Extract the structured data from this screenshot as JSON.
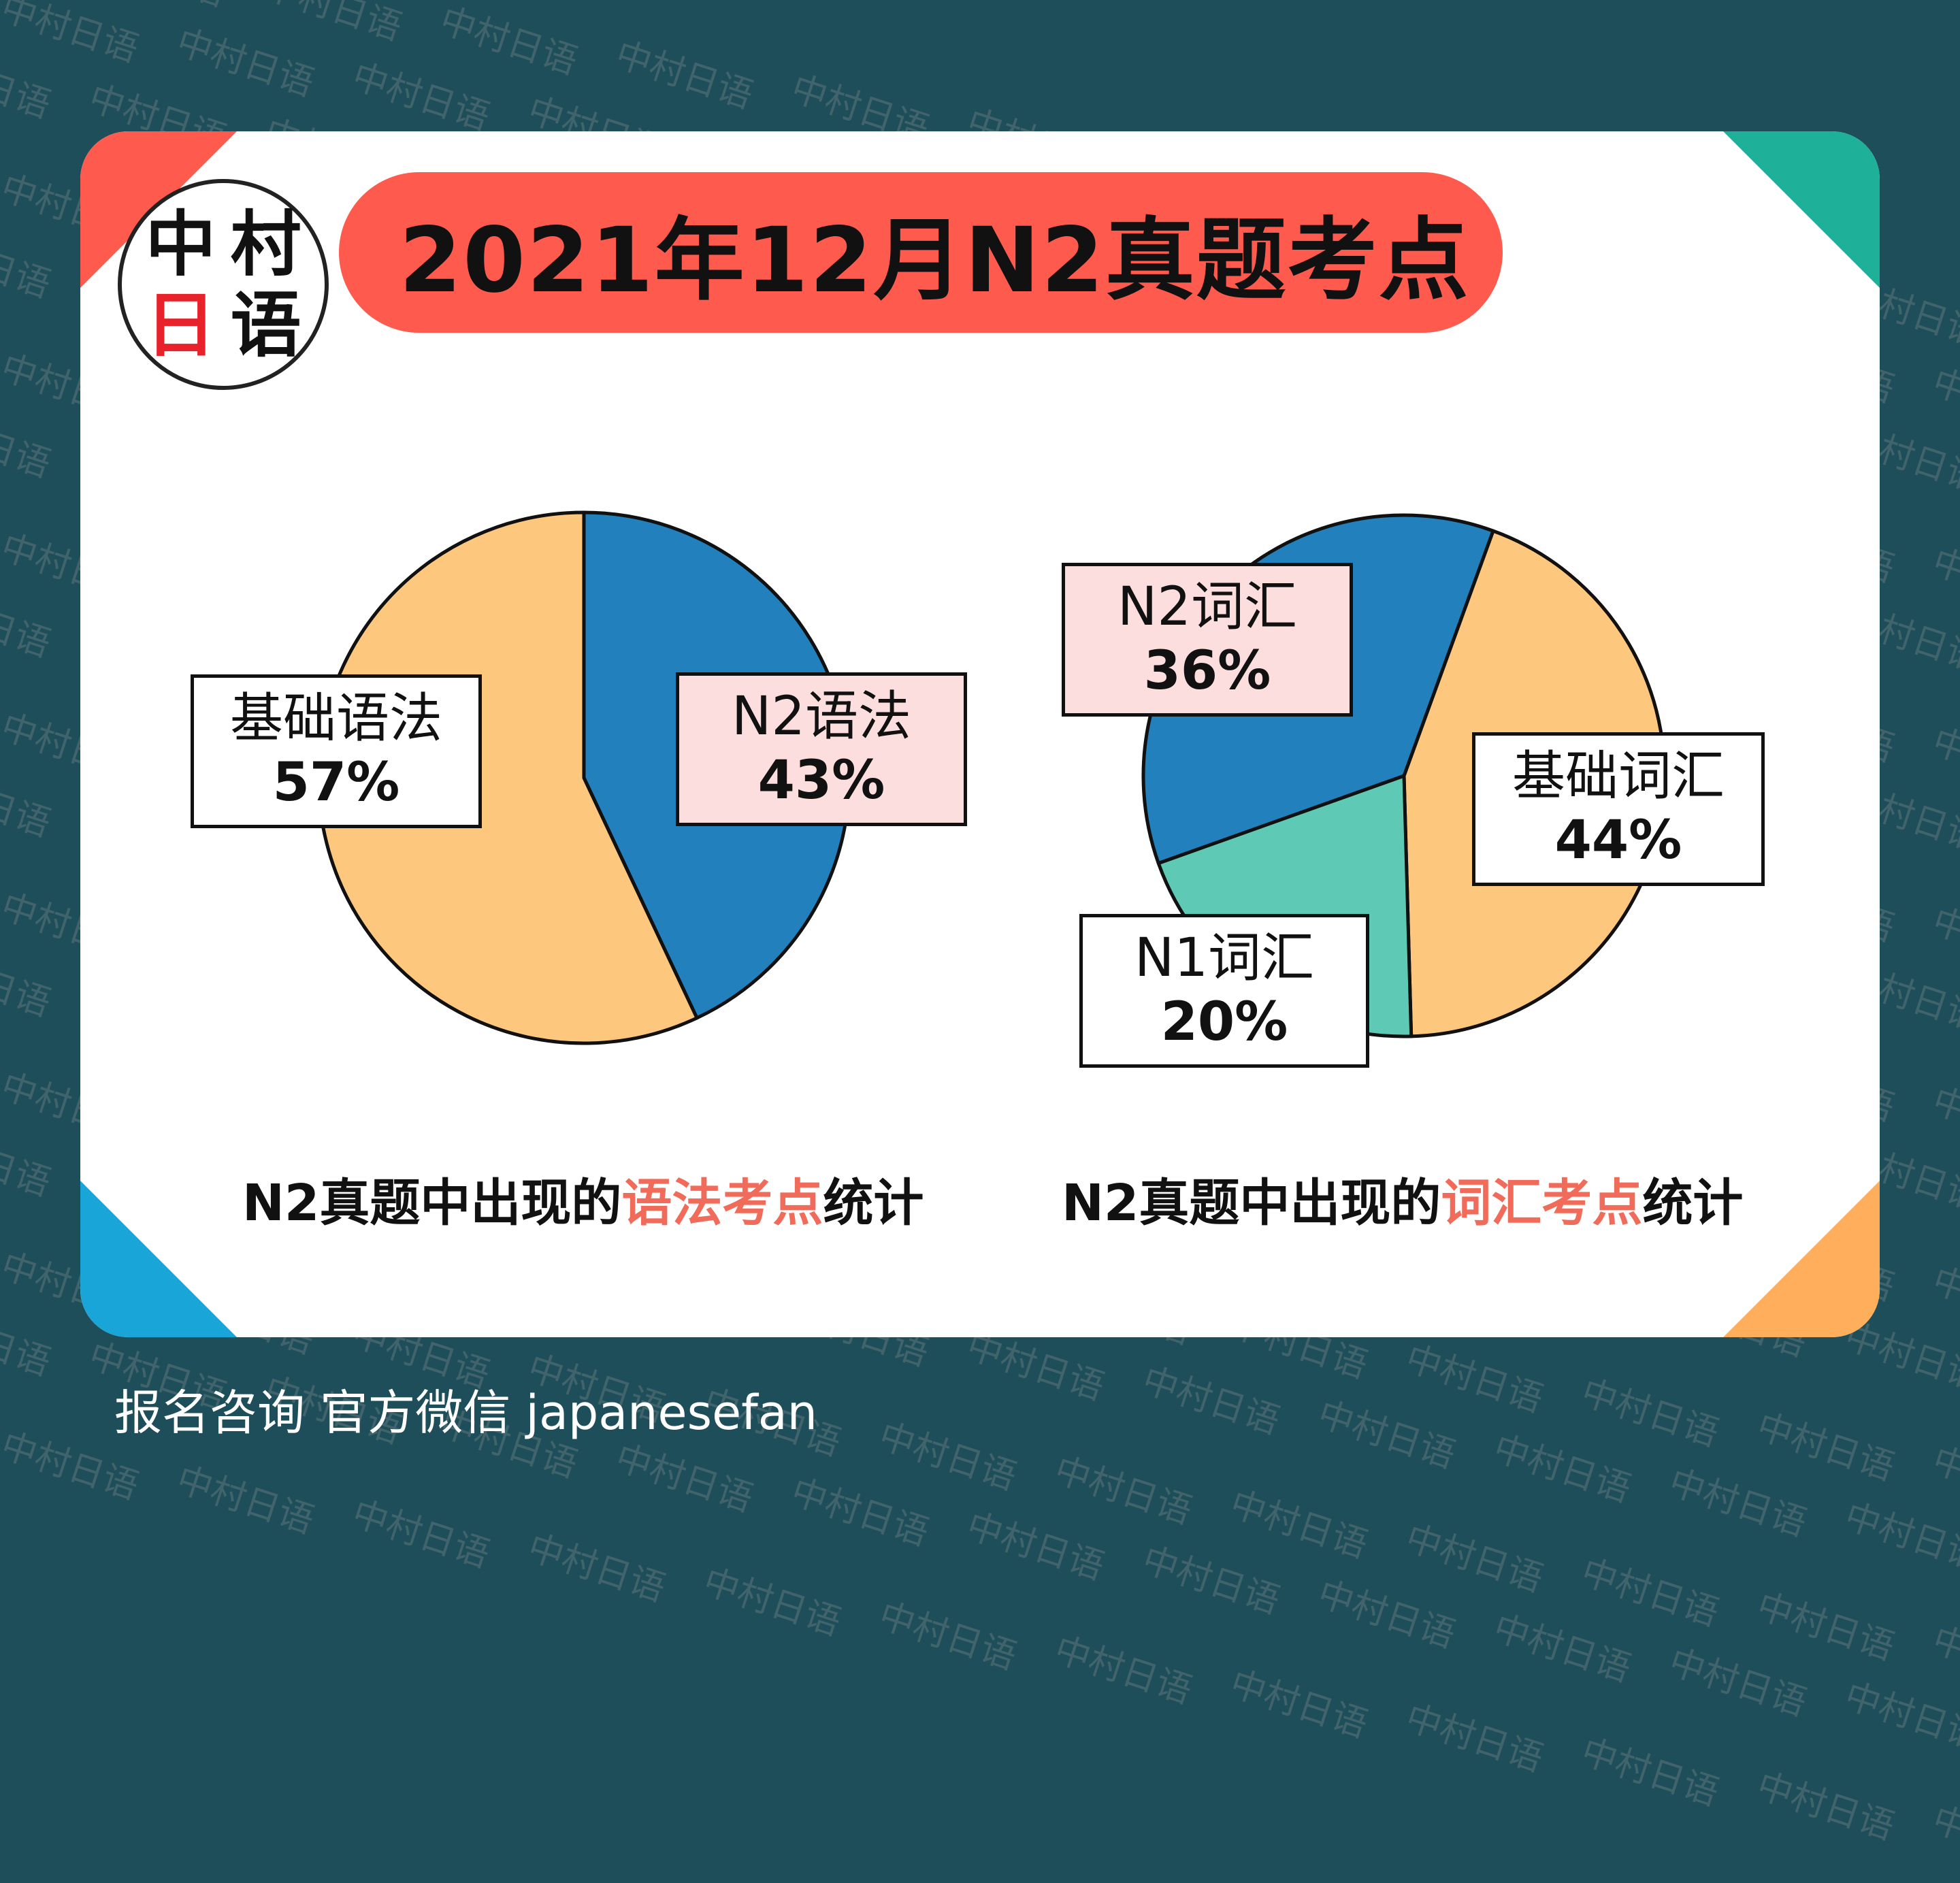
{
  "title": "2021年12月N2真题考点",
  "logo": {
    "chars": [
      "中",
      "村",
      "日",
      "语"
    ]
  },
  "chart_data": [
    {
      "type": "pie",
      "title": "N2真题中出现的语法考点统计",
      "slices": [
        {
          "label": "N2语法",
          "value": 43,
          "color": "#2281bd"
        },
        {
          "label": "基础语法",
          "value": 57,
          "color": "#fec77e"
        }
      ]
    },
    {
      "type": "pie",
      "title": "N2真题中出现的词汇考点统计",
      "slices": [
        {
          "label": "基础词汇",
          "value": 44,
          "color": "#fec77e"
        },
        {
          "label": "N1词汇",
          "value": 20,
          "color": "#5ec9b4"
        },
        {
          "label": "N2词汇",
          "value": 36,
          "color": "#2281bd"
        }
      ]
    }
  ],
  "labels": {
    "grammar_basic": {
      "name": "基础语法",
      "pct": "57%"
    },
    "grammar_n2": {
      "name": "N2语法",
      "pct": "43%"
    },
    "vocab_n2": {
      "name": "N2词汇",
      "pct": "36%"
    },
    "vocab_basic": {
      "name": "基础词汇",
      "pct": "44%"
    },
    "vocab_n1": {
      "name": "N1词汇",
      "pct": "20%"
    }
  },
  "captions": {
    "grammar": {
      "prefix": "N2真题中出现的",
      "highlight": "语法考点",
      "suffix": "统计"
    },
    "vocab": {
      "prefix": "N2真题中出现的",
      "highlight": "词汇考点",
      "suffix": "统计"
    }
  },
  "footer": "报名咨询 官方微信 japanesefan",
  "watermark": "中村日语",
  "colors": {
    "background": "#1e4e5a",
    "title_pill": "#ff5a4e",
    "highlight": "#f06b5a",
    "blue": "#2281bd",
    "orange": "#fec77e",
    "teal": "#5ec9b4",
    "pink_box": "#fddede"
  }
}
